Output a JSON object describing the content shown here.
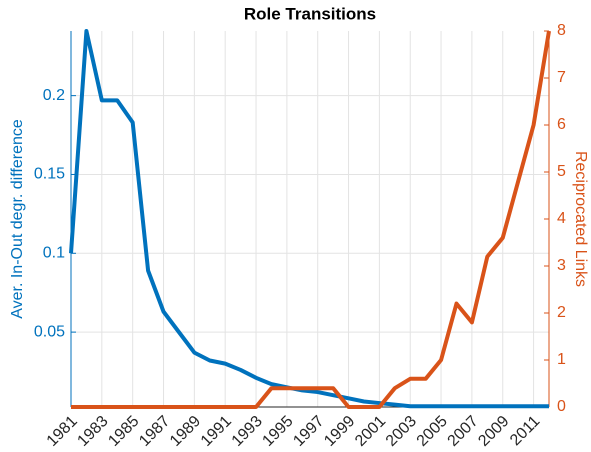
{
  "chart_data": {
    "type": "line",
    "title": "Role Transitions",
    "ylabel": "Aver. In-Out degr. difference",
    "y2label": "Reciprocated Links",
    "x": [
      1981,
      1982,
      1983,
      1984,
      1985,
      1986,
      1987,
      1988,
      1989,
      1990,
      1991,
      1992,
      1993,
      1994,
      1995,
      1996,
      1997,
      1998,
      1999,
      2000,
      2001,
      2002,
      2003,
      2004,
      2005,
      2006,
      2007,
      2008,
      2009,
      2010,
      2011,
      2012
    ],
    "xlim": [
      1981,
      2012
    ],
    "xticks": [
      1981,
      1983,
      1985,
      1987,
      1989,
      1991,
      1993,
      1995,
      1997,
      1999,
      2001,
      2003,
      2005,
      2007,
      2009,
      2011
    ],
    "ylim": [
      0.0025,
      0.241
    ],
    "yticks": [
      0.05,
      0.1,
      0.15,
      0.2
    ],
    "y2lim": [
      0,
      8
    ],
    "y2ticks": [
      0,
      1,
      2,
      3,
      4,
      5,
      6,
      7,
      8
    ],
    "grid": true,
    "series": [
      {
        "name": "Aver. In-Out degr. difference",
        "color": "#0072BD",
        "axis": "y",
        "values": [
          0.1,
          0.241,
          0.197,
          0.197,
          0.183,
          0.089,
          0.063,
          0.05,
          0.037,
          0.032,
          0.03,
          0.026,
          0.021,
          0.017,
          0.015,
          0.013,
          0.012,
          0.01,
          0.008,
          0.006,
          0.005,
          0.004,
          0.003,
          0.003,
          0.003,
          0.003,
          0.003,
          0.003,
          0.003,
          0.003,
          0.003,
          0.003
        ]
      },
      {
        "name": "Reciprocated Links",
        "color": "#D95319",
        "axis": "y2",
        "values": [
          0,
          0,
          0,
          0,
          0,
          0,
          0,
          0,
          0,
          0,
          0,
          0,
          0,
          0.4,
          0.4,
          0.4,
          0.4,
          0.4,
          0,
          0,
          0,
          0.4,
          0.6,
          0.6,
          1.0,
          2.2,
          1.8,
          3.2,
          3.6,
          4.8,
          6.0,
          8.0
        ]
      }
    ]
  }
}
